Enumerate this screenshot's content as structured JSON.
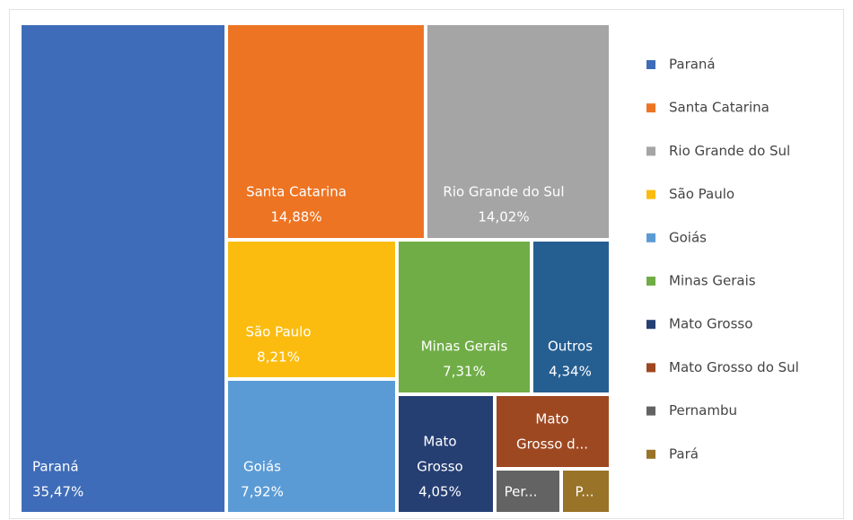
{
  "chart_data": {
    "type": "treemap",
    "categories": [
      "Paraná",
      "Santa Catarina",
      "Rio Grande do Sul",
      "São Paulo",
      "Goiás",
      "Minas Gerais",
      "Outros",
      "Mato Grosso",
      "Mato Grosso do Sul",
      "Pernambu",
      "Pará"
    ],
    "values": [
      35.47,
      14.88,
      14.02,
      8.21,
      7.92,
      7.31,
      4.34,
      4.05,
      2.5,
      0.74,
      0.56
    ],
    "value_labels": [
      "35,47%",
      "14,88%",
      "14,02%",
      "8,21%",
      "7,92%",
      "7,31%",
      "4,34%",
      "4,05%",
      null,
      null,
      null
    ],
    "tile_labels": [
      [
        "Paraná"
      ],
      [
        "Santa Catarina"
      ],
      [
        "Rio Grande do Sul"
      ],
      [
        "São Paulo"
      ],
      [
        "Goiás"
      ],
      [
        "Minas Gerais"
      ],
      [
        "Outros"
      ],
      [
        "Mato",
        "Grosso"
      ],
      [
        "Mato",
        "Grosso d..."
      ],
      [
        "Per..."
      ],
      [
        "P..."
      ]
    ],
    "colors": [
      "#3f6cb8",
      "#ed7423",
      "#a5a5a5",
      "#fbbc0f",
      "#5b9bd5",
      "#70ad47",
      "#255e91",
      "#263f73",
      "#9e4821",
      "#636363",
      "#987328"
    ],
    "in_legend": [
      true,
      true,
      true,
      true,
      true,
      true,
      false,
      true,
      true,
      true,
      true
    ],
    "legend": "right"
  }
}
